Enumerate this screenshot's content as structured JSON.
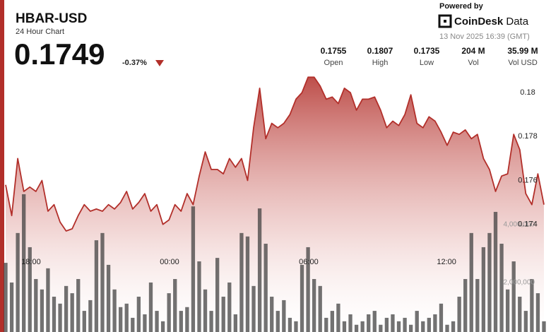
{
  "header": {
    "symbol": "HBAR-USD",
    "subtitle": "24 Hour Chart",
    "price": 0.1749,
    "change": "-0.37%"
  },
  "branding": {
    "powered_by": "Powered by",
    "brand": "CoinDesk",
    "brand_suffix": "Data",
    "timestamp": "13 Nov 2025 16:39 (GMT)"
  },
  "stats": [
    {
      "value": 0.1755,
      "label": "Open"
    },
    {
      "value": 0.1807,
      "label": "High"
    },
    {
      "value": 0.1735,
      "label": "Low"
    },
    {
      "value": "204 M",
      "label": "Vol"
    },
    {
      "value": "35.99 M",
      "label": "Vol USD"
    }
  ],
  "chart_data": {
    "type": "line",
    "xlim": [
      0,
      89
    ],
    "xticks": [
      {
        "value": 4.2,
        "label": "18:00"
      },
      {
        "value": 27.1,
        "label": "00:00"
      },
      {
        "value": 50.1,
        "label": "06:00"
      },
      {
        "value": 72.9,
        "label": "12:00"
      }
    ],
    "ylim": [
      0.1691,
      0.181
    ],
    "yticks": [
      0.174,
      0.176,
      0.178,
      0.18
    ],
    "y2lim": [
      290000,
      9320000
    ],
    "y2ticks": [
      {
        "value": 2000000,
        "label": "2,000,000"
      },
      {
        "value": 4000000,
        "label": "4,000,000"
      }
    ],
    "series": [
      {
        "type": "line",
        "color": "#b22f2a",
        "values": [
          0.1758,
          0.1744,
          0.177,
          0.1755,
          0.1757,
          0.1755,
          0.176,
          0.1746,
          0.1749,
          0.1741,
          0.1737,
          0.1738,
          0.1744,
          0.1749,
          0.1746,
          0.1747,
          0.1746,
          0.1749,
          0.1747,
          0.175,
          0.1755,
          0.1747,
          0.175,
          0.1754,
          0.1746,
          0.1749,
          0.174,
          0.1742,
          0.1749,
          0.1746,
          0.1754,
          0.1749,
          0.1762,
          0.1773,
          0.1765,
          0.1765,
          0.1763,
          0.177,
          0.1766,
          0.177,
          0.176,
          0.1784,
          0.1802,
          0.1779,
          0.1786,
          0.1784,
          0.1786,
          0.179,
          0.1797,
          0.18,
          0.1807,
          0.1807,
          0.1803,
          0.1797,
          0.1798,
          0.1795,
          0.1802,
          0.18,
          0.1792,
          0.1797,
          0.1797,
          0.1798,
          0.1792,
          0.1784,
          0.1787,
          0.1785,
          0.179,
          0.1799,
          0.1786,
          0.1784,
          0.1789,
          0.1787,
          0.1782,
          0.1776,
          0.1782,
          0.1781,
          0.1783,
          0.1779,
          0.1781,
          0.177,
          0.1765,
          0.1755,
          0.1762,
          0.1763,
          0.1781,
          0.1774,
          0.1754,
          0.1749,
          0.1763,
          0.1749
        ]
      },
      {
        "type": "bar",
        "axis": "y2",
        "color": "#3c3c3c",
        "values": [
          2680000,
          2000000,
          3710000,
          5050000,
          3220000,
          2120000,
          1760000,
          2490000,
          1510000,
          1270000,
          1880000,
          1630000,
          2120000,
          1020000,
          1390000,
          3460000,
          3710000,
          2610000,
          1760000,
          1150000,
          1270000,
          780000,
          1510000,
          900000,
          2000000,
          1020000,
          660000,
          1630000,
          2120000,
          1020000,
          1150000,
          4630000,
          2730000,
          1760000,
          1020000,
          2850000,
          1510000,
          2000000,
          900000,
          3710000,
          3590000,
          1880000,
          4560000,
          3340000,
          1510000,
          1020000,
          1390000,
          780000,
          660000,
          2610000,
          3220000,
          2120000,
          1880000,
          780000,
          1020000,
          1270000,
          660000,
          900000,
          540000,
          660000,
          900000,
          1020000,
          540000,
          780000,
          900000,
          660000,
          780000,
          540000,
          1020000,
          660000,
          780000,
          900000,
          1270000,
          540000,
          660000,
          1510000,
          2120000,
          3710000,
          2120000,
          3220000,
          3710000,
          4440000,
          3340000,
          1760000,
          2730000,
          1510000,
          1020000,
          2120000,
          1630000,
          660000
        ]
      }
    ]
  }
}
